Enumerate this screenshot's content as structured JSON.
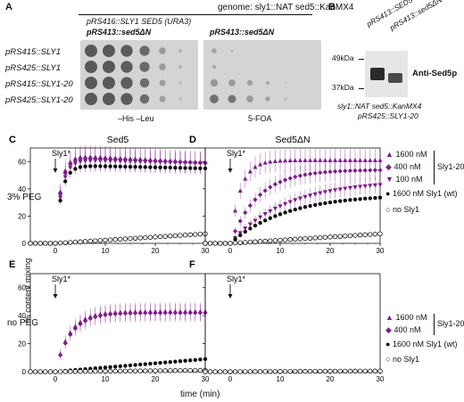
{
  "panelA": {
    "label": "A",
    "genome": "genome: sly1::NAT sed5::KanMX4",
    "plasmid_main": "pRS416::SLY1 SED5 (URA3)",
    "plasmid_left": "pRS413::sed5ΔN",
    "plasmid_right": "pRS413::sed5ΔN",
    "strains": [
      "pRS415::SLY1",
      "pRS425::SLY1",
      "pRS415::SLY1-20",
      "pRS425::SLY1-20"
    ],
    "media_left": "–His –Leu",
    "media_right": "5-FOA"
  },
  "panelB": {
    "label": "B",
    "lanes": [
      "pRS413::SED5",
      "pRS413::sed5ΔN"
    ],
    "mw_top": "49kDa",
    "mw_bottom": "37kDa",
    "antibody": "Anti-Sed5p",
    "caption1": "sly1::NAT sed5::KanMX4",
    "caption2": "pRS425::SLY1-20"
  },
  "plots": {
    "C": {
      "label": "C",
      "title": "Sed5"
    },
    "D": {
      "label": "D",
      "title": "Sed5ΔN"
    },
    "E": {
      "label": "E",
      "title": ""
    },
    "F": {
      "label": "F",
      "title": ""
    },
    "arrow_label": "Sly1*",
    "row1_label": "3% PEG",
    "row2_label": "no PEG",
    "ylabel": "% content mixing",
    "xlabel": "time (min)"
  },
  "legend_top": {
    "items": [
      "1600 nM",
      "400 nM",
      "100 nM"
    ],
    "group": "Sly1-20",
    "wt": "1600 nM Sly1 (wt)",
    "none": "no Sly1"
  },
  "legend_bottom": {
    "items": [
      "1600 nM",
      "400 nM"
    ],
    "group": "Sly1-20",
    "wt": "1600 nM Sly1 (wt)",
    "none": "no Sly1"
  },
  "colors": {
    "purple": "#7b1f86",
    "black": "#111111",
    "plate": "#d4d4d4"
  },
  "chart_data": [
    {
      "type": "scatter",
      "panel": "C",
      "x_range": [
        -5,
        30
      ],
      "y_range": [
        0,
        70
      ],
      "xticks": [
        0,
        10,
        20,
        30
      ],
      "yticks": [
        0,
        20,
        40,
        60
      ],
      "series": [
        {
          "values_model": "1600 nM",
          "plateau": 64,
          "rate": 0.9,
          "drop": 0.18
        },
        {
          "values_model": "400 nM",
          "plateau": 63,
          "rate": 0.85,
          "drop": 0.16
        },
        {
          "values_model": "100 nM",
          "plateau": 61,
          "rate": 0.8,
          "drop": 0.1
        },
        {
          "values_model": "1600 nM Sly1 (wt)",
          "plateau": 57,
          "rate": 0.8,
          "drop": 0.08
        },
        {
          "values_model": "no Sly1",
          "plateau": 7,
          "rate": 0.0,
          "linear": true
        }
      ]
    },
    {
      "type": "scatter",
      "panel": "D",
      "x_range": [
        -5,
        30
      ],
      "y_range": [
        0,
        70
      ],
      "xticks": [
        0,
        10,
        20,
        30
      ],
      "yticks": [
        0,
        20,
        40,
        60
      ],
      "series": [
        {
          "values_model": "1600 nM",
          "plateau": 61,
          "rate": 0.5
        },
        {
          "values_model": "400 nM",
          "plateau": 54,
          "rate": 0.18
        },
        {
          "values_model": "100 nM",
          "plateau": 46,
          "rate": 0.09
        },
        {
          "values_model": "1600 nM Sly1 (wt)",
          "plateau": 36,
          "rate": 0.09
        },
        {
          "values_model": "no Sly1",
          "plateau": 7,
          "rate": 0.0,
          "linear": true
        }
      ]
    },
    {
      "type": "scatter",
      "panel": "E",
      "x_range": [
        -5,
        30
      ],
      "y_range": [
        0,
        70
      ],
      "xticks": [
        0,
        10,
        20,
        30
      ],
      "yticks": [
        0,
        20,
        40,
        60
      ],
      "series": [
        {
          "values_model": "1600 nM",
          "plateau": 43,
          "rate": 0.35
        },
        {
          "values_model": "400 nM",
          "plateau": 42,
          "rate": 0.33
        },
        {
          "values_model": "1600 nM Sly1 (wt)",
          "plateau": 9,
          "rate": 0.0,
          "linear": true
        },
        {
          "values_model": "no Sly1",
          "plateau": 1,
          "rate": 0.0,
          "linear": true
        }
      ]
    },
    {
      "type": "scatter",
      "panel": "F",
      "x_range": [
        -5,
        30
      ],
      "y_range": [
        0,
        70
      ],
      "xticks": [
        0,
        10,
        20,
        30
      ],
      "yticks": [
        0,
        20,
        40,
        60
      ],
      "series": [
        {
          "values_model": "1600 nM",
          "plateau": 0.5,
          "rate": 0.0,
          "linear": true
        },
        {
          "values_model": "400 nM",
          "plateau": 0.5,
          "rate": 0.0,
          "linear": true
        },
        {
          "values_model": "1600 nM Sly1 (wt)",
          "plateau": 0.5,
          "rate": 0.0,
          "linear": true
        },
        {
          "values_model": "no Sly1",
          "plateau": 0.5,
          "rate": 0.0,
          "linear": true
        }
      ]
    }
  ]
}
